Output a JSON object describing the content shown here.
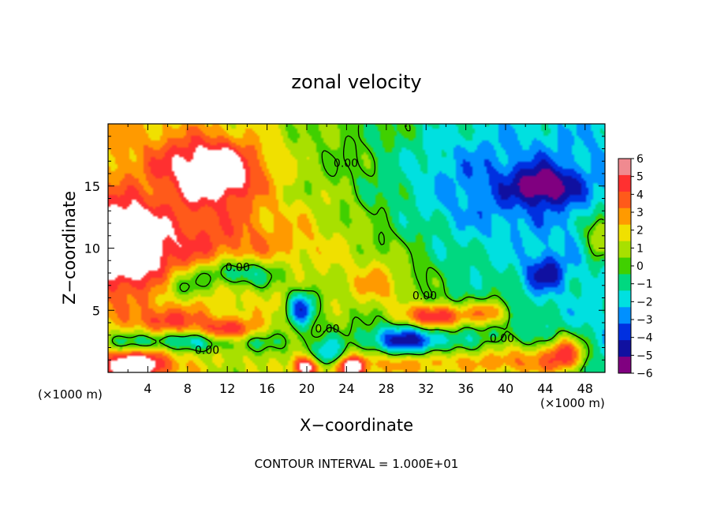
{
  "chart_data": {
    "type": "heatmap",
    "title": "zonal velocity",
    "xlabel": "X−coordinate",
    "ylabel": "Z−coordinate",
    "x_unit_label": "(×1000 m)",
    "y_unit_label": "(×1000 m)",
    "footer": "CONTOUR INTERVAL = 1.000E+01",
    "xlim": [
      0,
      50
    ],
    "ylim": [
      0,
      20
    ],
    "x_ticks": [
      4,
      8,
      12,
      16,
      20,
      24,
      28,
      32,
      36,
      40,
      44,
      48
    ],
    "y_ticks": [
      5,
      10,
      15
    ],
    "colorbar": {
      "ticks": [
        6,
        5,
        4,
        3,
        2,
        1,
        0,
        -1,
        -2,
        -3,
        -4,
        -5,
        -6
      ],
      "tick_labels": [
        "6",
        "5",
        "4",
        "3",
        "2",
        "1",
        "0",
        "−1",
        "−2",
        "−3",
        "−4",
        "−5",
        "−6"
      ],
      "colors": [
        "#f08a90",
        "#ff3030",
        "#ff5a1a",
        "#ff9a00",
        "#f0e000",
        "#a8e000",
        "#40d000",
        "#00d880",
        "#00e0e0",
        "#0090ff",
        "#0030e0",
        "#1010a0",
        "#800080"
      ],
      "range": [
        -6,
        6
      ]
    },
    "contour_level": 0,
    "contour_labels": [
      "0.00",
      "0.00",
      "0.00",
      "0.00",
      "0.00",
      "0.00"
    ],
    "grid": false,
    "blobs": [
      {
        "x": 8,
        "z": 10,
        "sx": 16,
        "sz": 4,
        "v": 3.0
      },
      {
        "x": 10,
        "z": 17,
        "sx": 6,
        "sz": 2.5,
        "v": 3.5
      },
      {
        "x": 11,
        "z": 15.5,
        "sx": 4,
        "sz": 2.2,
        "v": 3.5
      },
      {
        "x": 2,
        "z": 10.5,
        "sx": 3,
        "sz": 3,
        "v": 5.0
      },
      {
        "x": 13,
        "z": 8,
        "sx": 5,
        "sz": 1.3,
        "v": -4.5
      },
      {
        "x": 7.5,
        "z": 6.8,
        "sx": 2.5,
        "sz": 1.2,
        "v": -2.5
      },
      {
        "x": 19.5,
        "z": 5.2,
        "sx": 1.4,
        "sz": 1.5,
        "v": -5.0
      },
      {
        "x": 30,
        "z": 2.5,
        "sx": 4,
        "sz": 1.2,
        "v": -5.0
      },
      {
        "x": 33,
        "z": 4.5,
        "sx": 3,
        "sz": 1.0,
        "v": 6.5
      },
      {
        "x": 27.5,
        "z": 7,
        "sx": 3,
        "sz": 2,
        "v": 2.5
      },
      {
        "x": 38,
        "z": 15,
        "sx": 10,
        "sz": 5,
        "v": -2.5
      },
      {
        "x": 44,
        "z": 15,
        "sx": 3,
        "sz": 1.5,
        "v": -4.0
      },
      {
        "x": 44,
        "z": 8,
        "sx": 2,
        "sz": 1.5,
        "v": -3.5
      },
      {
        "x": 49.5,
        "z": 11,
        "sx": 1.5,
        "sz": 2,
        "v": 4.0
      },
      {
        "x": 7,
        "z": 2.5,
        "sx": 10,
        "sz": 0.8,
        "v": -3.5
      },
      {
        "x": 12,
        "z": 3.4,
        "sx": 3,
        "sz": 1,
        "v": 4.0
      },
      {
        "x": 6,
        "z": 4.2,
        "sx": 2.5,
        "sz": 1,
        "v": 3.0
      },
      {
        "x": 3,
        "z": 0.6,
        "sx": 3,
        "sz": 1,
        "v": 6.0
      },
      {
        "x": 42,
        "z": 0.8,
        "sx": 5,
        "sz": 1.5,
        "v": 4.0
      },
      {
        "x": 46,
        "z": 1.5,
        "sx": 2,
        "sz": 1.5,
        "v": 5.0
      },
      {
        "x": 31,
        "z": 0.8,
        "sx": 8,
        "sz": 1.2,
        "v": 3.5
      },
      {
        "x": 22,
        "z": 1.2,
        "sx": 1.5,
        "sz": 1.2,
        "v": -4.0
      },
      {
        "x": 20,
        "z": 0.4,
        "sx": 1.5,
        "sz": 0.8,
        "v": 6.0
      },
      {
        "x": 24.5,
        "z": 0.4,
        "sx": 1.5,
        "sz": 0.8,
        "v": 6.0
      },
      {
        "x": 38.5,
        "z": 5,
        "sx": 2,
        "sz": 1,
        "v": 1.5
      },
      {
        "x": 38.5,
        "z": 4.7,
        "sx": 2,
        "sz": 1,
        "v": 3.0
      }
    ]
  }
}
